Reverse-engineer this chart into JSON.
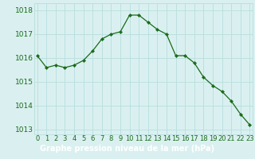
{
  "x": [
    0,
    1,
    2,
    3,
    4,
    5,
    6,
    7,
    8,
    9,
    10,
    11,
    12,
    13,
    14,
    15,
    16,
    17,
    18,
    19,
    20,
    21,
    22,
    23
  ],
  "y": [
    1016.1,
    1015.6,
    1015.7,
    1015.6,
    1015.7,
    1015.9,
    1016.3,
    1016.8,
    1017.0,
    1017.1,
    1017.8,
    1017.8,
    1017.5,
    1017.2,
    1017.0,
    1016.1,
    1016.1,
    1015.8,
    1015.2,
    1014.85,
    1014.6,
    1014.2,
    1013.65,
    1013.2
  ],
  "line_color": "#1a6b1a",
  "marker_color": "#1a6b1a",
  "bg_color": "#daf0f0",
  "grid_color": "#b8dede",
  "title": "Graphe pression niveau de la mer (hPa)",
  "ylim": [
    1012.8,
    1018.3
  ],
  "yticks": [
    1013,
    1014,
    1015,
    1016,
    1017,
    1018
  ],
  "xticks": [
    0,
    1,
    2,
    3,
    4,
    5,
    6,
    7,
    8,
    9,
    10,
    11,
    12,
    13,
    14,
    15,
    16,
    17,
    18,
    19,
    20,
    21,
    22,
    23
  ],
  "title_color": "#1a6b1a",
  "title_bg": "#2e7d2e",
  "title_fontsize": 7.0,
  "tick_fontsize": 6.0,
  "ytick_fontsize": 6.5
}
